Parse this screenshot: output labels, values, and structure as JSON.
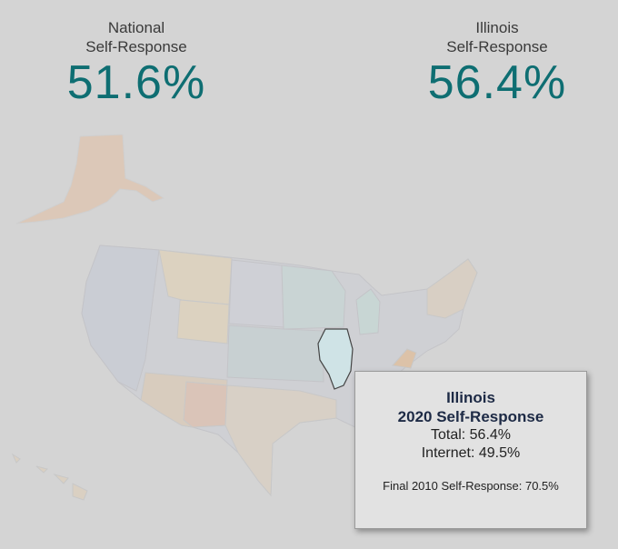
{
  "national": {
    "label_line1": "National",
    "label_line2": "Self-Response",
    "value": "51.6%"
  },
  "illinois": {
    "label_line1": "Illinois",
    "label_line2": "Self-Response",
    "value": "56.4%"
  },
  "tooltip": {
    "state": "Illinois",
    "subtitle": "2020 Self-Response",
    "total": "Total: 56.4%",
    "internet": "Internet: 49.5%",
    "final_2010": "Final 2010 Self-Response: 70.5%"
  },
  "colors": {
    "value_teal": "#0e6e72",
    "highlight_state": "#cfe3e6",
    "background": "#d4d4d4"
  }
}
